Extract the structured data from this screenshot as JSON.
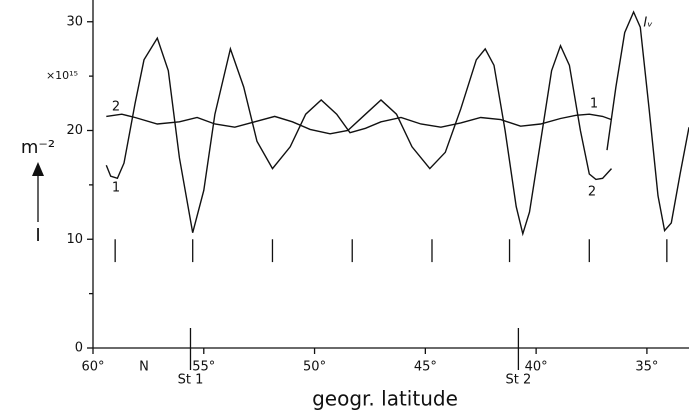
{
  "chart_data": {
    "type": "line",
    "x_label": "geogr. latitude",
    "y_label": "m⁻²",
    "y_symbol": "I",
    "y_scale_label": "×10¹⁵",
    "xlim": [
      60,
      33.1
    ],
    "ylim": [
      0,
      32
    ],
    "xticks": [
      {
        "value": 60,
        "label": "60°"
      },
      {
        "value": 55,
        "label": "55°"
      },
      {
        "value": 50,
        "label": "50°"
      },
      {
        "value": 45,
        "label": "45°"
      },
      {
        "value": 40,
        "label": "40°"
      },
      {
        "value": 35,
        "label": "35°"
      }
    ],
    "yticks": [
      0,
      10,
      20,
      30
    ],
    "yminor": [
      5,
      15,
      25
    ],
    "north_label": "N",
    "stations": [
      {
        "label": "St 1",
        "x": 55.6
      },
      {
        "label": "St 2",
        "x": 40.8
      }
    ],
    "markers": [
      59.0,
      55.5,
      51.9,
      48.3,
      44.7,
      41.2,
      37.6,
      34.1
    ],
    "series": [
      {
        "name": "1",
        "color": "#111111",
        "x": [
          59.4,
          59.2,
          58.9,
          58.6,
          58.1,
          57.7,
          57.1,
          56.6,
          56.1,
          55.5,
          55.0,
          54.5,
          53.8,
          53.2,
          52.6,
          51.9,
          51.1,
          50.4,
          49.7,
          49.0,
          48.4,
          47.7,
          47.0,
          46.1,
          45.2,
          44.3,
          43.4,
          42.5,
          41.6,
          40.7,
          39.8,
          38.9,
          38.2,
          37.6,
          37.0,
          36.6
        ],
        "values": [
          16.8,
          15.8,
          15.6,
          17.0,
          22.5,
          26.5,
          28.5,
          25.5,
          17.5,
          10.6,
          14.5,
          21.5,
          27.5,
          24.0,
          19.0,
          16.5,
          18.5,
          21.5,
          22.8,
          21.5,
          19.8,
          20.2,
          20.8,
          21.2,
          20.6,
          20.3,
          20.7,
          21.2,
          21.0,
          20.4,
          20.6,
          21.1,
          21.4,
          21.5,
          21.3,
          21.0
        ]
      },
      {
        "name": "2",
        "color": "#111111",
        "x": [
          59.4,
          58.7,
          58.1,
          57.1,
          56.1,
          55.3,
          54.5,
          53.6,
          52.7,
          51.8,
          51.0,
          50.2,
          49.3,
          48.5,
          47.7,
          47.0,
          46.3,
          45.6,
          44.8,
          44.1,
          43.4,
          42.7,
          42.3,
          41.9,
          41.4,
          40.9,
          40.6,
          40.3,
          39.8,
          39.3,
          38.9,
          38.5,
          38.0,
          37.6,
          37.3,
          37.0,
          36.6
        ],
        "values": [
          21.3,
          21.5,
          21.2,
          20.6,
          20.8,
          21.2,
          20.6,
          20.3,
          20.8,
          21.3,
          20.8,
          20.1,
          19.7,
          20.0,
          21.5,
          22.8,
          21.5,
          18.5,
          16.5,
          18.0,
          22.0,
          26.5,
          27.5,
          26.0,
          20.0,
          13.0,
          10.5,
          12.5,
          19.0,
          25.5,
          27.8,
          26.0,
          20.0,
          16.0,
          15.5,
          15.6,
          16.5
        ]
      },
      {
        "name": "Iᵥ",
        "color": "#111111",
        "x": [
          36.8,
          36.4,
          36.0,
          35.6,
          35.3,
          34.9,
          34.5,
          34.2,
          33.9,
          33.5,
          33.1
        ],
        "values": [
          18.2,
          24.0,
          29.0,
          30.9,
          29.5,
          22.0,
          14.0,
          10.8,
          11.5,
          16.0,
          20.3
        ]
      }
    ]
  }
}
